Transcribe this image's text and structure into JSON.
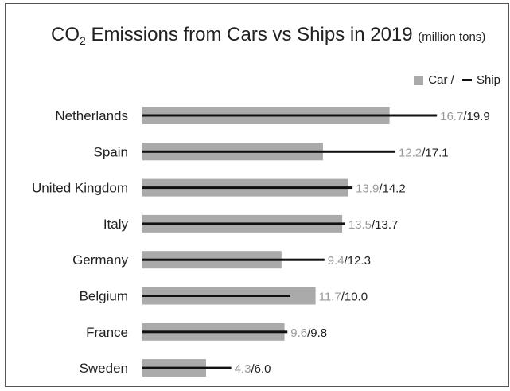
{
  "chart_data": {
    "type": "bar",
    "title": "CO",
    "title_subscript": "2",
    "title_rest": " Emissions from Cars vs Ships in 2019 ",
    "title_unit": "(million tons)",
    "legend": {
      "car_label": "Car",
      "separator": " / ",
      "ship_label": "Ship",
      "placement": "top-right"
    },
    "categories": [
      "Netherlands",
      "Spain",
      "United Kingdom",
      "Italy",
      "Germany",
      "Belgium",
      "France",
      "Sweden"
    ],
    "series": [
      {
        "name": "Car",
        "values": [
          16.7,
          12.2,
          13.9,
          13.5,
          9.4,
          11.7,
          9.6,
          4.3
        ],
        "color": "#aaaaaa"
      },
      {
        "name": "Ship",
        "values": [
          19.9,
          17.1,
          14.2,
          13.7,
          12.3,
          10.0,
          9.8,
          6.0
        ],
        "color": "#111111"
      }
    ],
    "value_labels": {
      "car": [
        "16.7",
        "12.2",
        "13.9",
        "13.5",
        "9.4",
        "11.7",
        "9.6",
        "4.3"
      ],
      "ship": [
        "19.9",
        "17.1",
        "14.2",
        "13.7",
        "12.3",
        "10.0",
        "9.8",
        "6.0"
      ],
      "separator": "/"
    },
    "xlim": [
      0,
      20
    ],
    "grid": false
  }
}
